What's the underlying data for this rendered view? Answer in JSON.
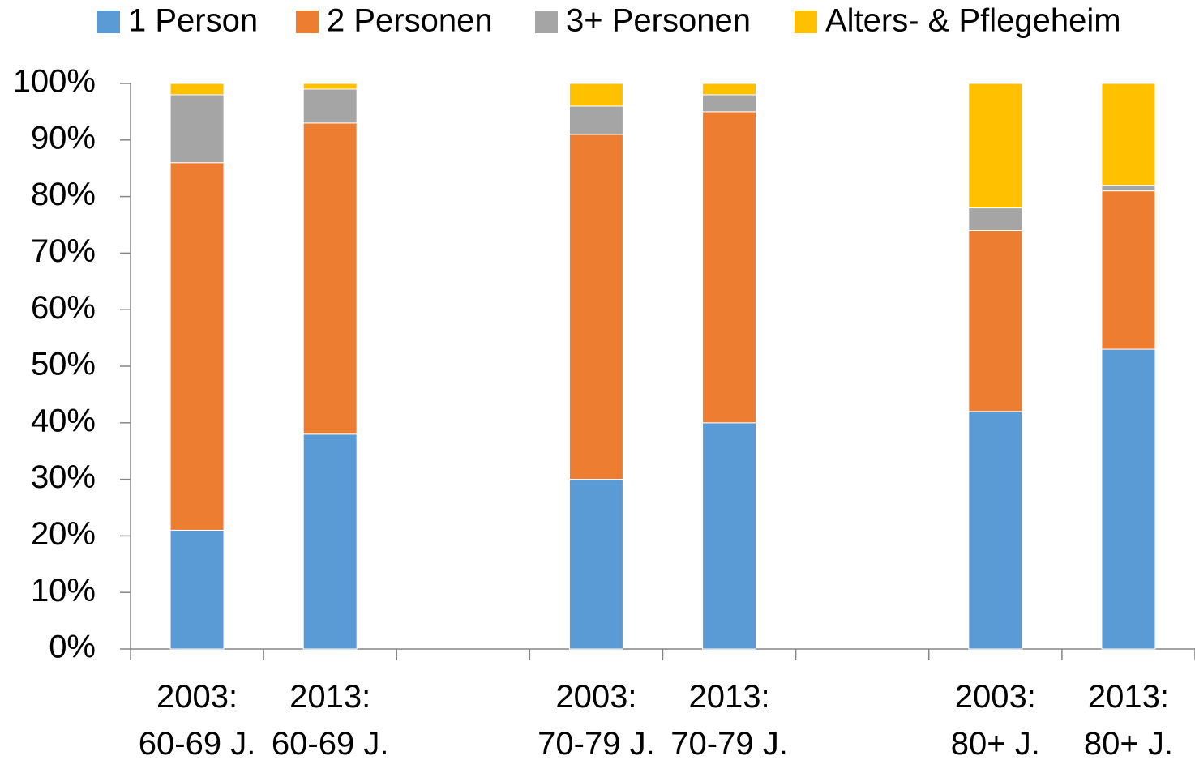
{
  "chart_data": {
    "type": "stacked_bar",
    "categories": [
      "2003:\n60-69 J.",
      "2013:\n60-69 J.",
      null,
      "2003:\n70-79 J.",
      "2013:\n70-79 J.",
      null,
      "2003:\n80+ J.",
      "2013:\n80+ J."
    ],
    "series": [
      {
        "name": "1 Person",
        "color": "#5b9bd5",
        "values": [
          21,
          38,
          null,
          30,
          40,
          null,
          42,
          53
        ]
      },
      {
        "name": "2 Personen",
        "color": "#ed7d31",
        "values": [
          65,
          55,
          null,
          61,
          55,
          null,
          32,
          28
        ]
      },
      {
        "name": "3+ Personen",
        "color": "#a5a5a5",
        "values": [
          12,
          6,
          null,
          5,
          3,
          null,
          4,
          1
        ]
      },
      {
        "name": "Alters- & Pflegeheim",
        "color": "#ffc000",
        "values": [
          2,
          1,
          null,
          4,
          2,
          null,
          22,
          18
        ]
      }
    ],
    "ylim": [
      0,
      100
    ],
    "yticks": [
      {
        "value": 0,
        "label": "0%"
      },
      {
        "value": 10,
        "label": "10%"
      },
      {
        "value": 20,
        "label": "20%"
      },
      {
        "value": 30,
        "label": "30%"
      },
      {
        "value": 40,
        "label": "40%"
      },
      {
        "value": 50,
        "label": "50%"
      },
      {
        "value": 60,
        "label": "60%"
      },
      {
        "value": 70,
        "label": "70%"
      },
      {
        "value": 80,
        "label": "80%"
      },
      {
        "value": 90,
        "label": "90%"
      },
      {
        "value": 100,
        "label": "100%"
      }
    ],
    "legend": "top"
  }
}
